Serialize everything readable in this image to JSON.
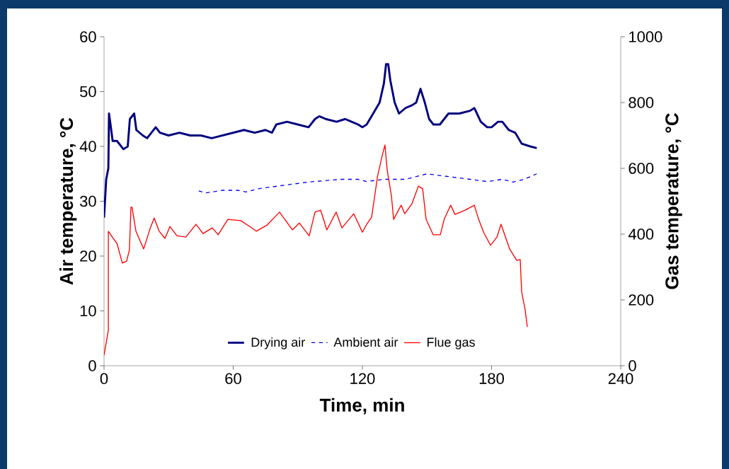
{
  "chart_data": {
    "type": "line",
    "xlabel": "Time, min",
    "ylabel": "Air temperature, °C",
    "y2label": "Gas temperature, °C",
    "xlim": [
      0,
      240
    ],
    "xticks": [
      0,
      60,
      120,
      180,
      240
    ],
    "ylim": [
      0,
      60
    ],
    "yticks": [
      0,
      10,
      20,
      30,
      40,
      50,
      60
    ],
    "y2lim": [
      0,
      1000
    ],
    "y2ticks": [
      0,
      200,
      400,
      600,
      800,
      1000
    ],
    "legend": "bottom",
    "series": [
      {
        "name": "Drying air",
        "color": "#000080",
        "line_style": "solid",
        "axis": "y",
        "x": [
          0,
          1,
          2,
          2.3,
          3,
          4,
          6,
          8,
          9,
          11,
          12,
          13,
          14,
          15,
          18,
          20,
          22,
          24,
          26,
          30,
          35,
          40,
          45,
          50,
          55,
          60,
          65,
          70,
          75,
          78,
          80,
          85,
          90,
          95,
          98,
          100,
          103,
          108,
          112,
          115,
          118,
          120,
          122,
          125,
          128,
          130,
          131,
          132,
          133,
          135,
          137,
          140,
          143,
          145,
          147,
          149,
          151,
          153,
          156,
          158,
          160,
          165,
          170,
          172,
          175,
          178,
          180,
          183,
          185,
          188,
          191,
          194,
          198,
          201
        ],
        "values": [
          27,
          34,
          36,
          46,
          44,
          41,
          41,
          40,
          39.5,
          40,
          45,
          45.5,
          46,
          43,
          42,
          41.5,
          42.5,
          43.5,
          42.5,
          42,
          42.5,
          42,
          42,
          41.5,
          42,
          42.5,
          43,
          42.5,
          43,
          42.5,
          44,
          44.5,
          44,
          43.5,
          45,
          45.5,
          45,
          44.5,
          45,
          44.5,
          44,
          43.5,
          44,
          46,
          48,
          51.5,
          55,
          55,
          52,
          48,
          46,
          47,
          47.5,
          48,
          50.5,
          48,
          45,
          44,
          44,
          45,
          46,
          46,
          46.5,
          47,
          44.5,
          43.5,
          43.5,
          44.5,
          44.5,
          43,
          42.5,
          40.5,
          40,
          39.7
        ]
      },
      {
        "name": "Ambient air",
        "color": "#0000ff",
        "line_style": "dashed",
        "axis": "y",
        "x": [
          44,
          47,
          55,
          62,
          66,
          72,
          85,
          95,
          110,
          118,
          122,
          130,
          140,
          150,
          160,
          170,
          178,
          185,
          190,
          195,
          201
        ],
        "values": [
          31.9,
          31.5,
          32,
          32,
          31.7,
          32.3,
          33,
          33.5,
          34,
          34,
          33.6,
          34,
          34,
          35,
          34.5,
          34,
          33.6,
          34,
          33.5,
          34,
          35
        ]
      },
      {
        "name": "Flue gas",
        "color": "#ff0000",
        "line_style": "solid",
        "axis": "y2",
        "x": [
          0,
          2,
          2,
          4.3,
          6,
          8.5,
          10.5,
          11.8,
          12.5,
          13,
          14.8,
          18.4,
          21.4,
          23.3,
          25.6,
          28.3,
          30.6,
          33.9,
          38,
          42.7,
          46,
          50.3,
          53,
          57.5,
          63.5,
          67.7,
          70.7,
          75.6,
          81.5,
          87.5,
          90.7,
          95.3,
          98,
          100.6,
          103.5,
          107.8,
          110.5,
          116,
          120,
          122,
          124.3,
          127,
          129.2,
          130.5,
          131.5,
          133.5,
          134.5,
          138,
          139.7,
          143,
          146,
          148,
          149.6,
          152.9,
          156.2,
          158,
          161,
          163,
          167.7,
          172,
          174,
          176.3,
          179.5,
          182.5,
          184.4,
          188.4,
          191.7,
          193.3,
          194,
          195.6,
          196.6
        ],
        "values": [
          32,
          108,
          409,
          387,
          372,
          312,
          318,
          353,
          482,
          482,
          409,
          355,
          417,
          449,
          409,
          387,
          423,
          395,
          391,
          430,
          402,
          419,
          398,
          445,
          441,
          423,
          409,
          427,
          467,
          413,
          434,
          395,
          467,
          473,
          413,
          467,
          419,
          462,
          406,
          430,
          452,
          574,
          639,
          671,
          596,
          516,
          445,
          488,
          462,
          492,
          546,
          538,
          445,
          398,
          398,
          445,
          488,
          460,
          473,
          488,
          445,
          406,
          366,
          391,
          430,
          355,
          320,
          323,
          224,
          170,
          118
        ]
      }
    ]
  }
}
